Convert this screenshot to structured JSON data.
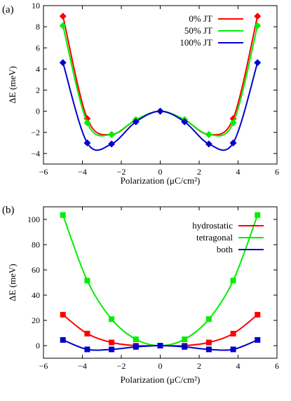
{
  "chart_data": [
    {
      "type": "line",
      "panel_label": "(a)",
      "xlabel": "Polarization (μC/cm²)",
      "ylabel": "ΔE (meV)",
      "xlim": [
        -6,
        6
      ],
      "ylim": [
        -5,
        10
      ],
      "xticks": [
        -6,
        -4,
        -2,
        0,
        2,
        4,
        6
      ],
      "yticks": [
        -4,
        -2,
        0,
        2,
        4,
        6,
        8,
        10
      ],
      "xtick_labels": [
        "−6",
        "−4",
        "−2",
        "0",
        "2",
        "4",
        "6"
      ],
      "ytick_labels": [
        "−4",
        "−2",
        "0",
        "2",
        "4",
        "6",
        "8",
        "10"
      ],
      "grid": false,
      "legend_position": "top-right",
      "marker": "diamond",
      "x": [
        -5.0,
        -3.75,
        -2.5,
        -1.25,
        0,
        1.25,
        2.5,
        3.75,
        5.0
      ],
      "series": [
        {
          "name": "0% JT",
          "color": "#ff0000",
          "values": [
            9.0,
            -0.7,
            -2.2,
            -0.8,
            0.0,
            -0.8,
            -2.2,
            -0.7,
            9.0
          ]
        },
        {
          "name": "50% JT",
          "color": "#00ee00",
          "values": [
            8.1,
            -1.1,
            -2.2,
            -0.8,
            0.0,
            -0.8,
            -2.2,
            -1.1,
            8.1
          ]
        },
        {
          "name": "100% JT",
          "color": "#0000cc",
          "values": [
            4.6,
            -3.0,
            -3.1,
            -1.0,
            0.0,
            -1.0,
            -3.1,
            -3.0,
            4.6
          ]
        }
      ]
    },
    {
      "type": "line",
      "panel_label": "(b)",
      "xlabel": "Polarization (μC/cm²)",
      "ylabel": "ΔE (meV)",
      "xlim": [
        -6,
        6
      ],
      "ylim": [
        -10,
        110
      ],
      "xticks": [
        -6,
        -4,
        -2,
        0,
        2,
        4,
        6
      ],
      "yticks": [
        0,
        20,
        40,
        60,
        80,
        100
      ],
      "xtick_labels": [
        "−6",
        "−4",
        "−2",
        "0",
        "2",
        "4",
        "6"
      ],
      "ytick_labels": [
        "0",
        "20",
        "40",
        "60",
        "80",
        "100"
      ],
      "grid": false,
      "legend_position": "top-right",
      "marker": "square",
      "x": [
        -5.0,
        -3.75,
        -2.5,
        -1.25,
        0,
        1.25,
        2.5,
        3.75,
        5.0
      ],
      "series": [
        {
          "name": "hydrostatic",
          "color": "#ff0000",
          "values": [
            24.5,
            9.5,
            2.5,
            0.0,
            0.0,
            0.0,
            2.5,
            9.5,
            24.5
          ]
        },
        {
          "name": "tetragonal",
          "color": "#00ee00",
          "values": [
            103.5,
            51.5,
            21.0,
            5.0,
            0.0,
            5.0,
            21.0,
            51.5,
            103.5
          ]
        },
        {
          "name": "both",
          "color": "#0000cc",
          "values": [
            4.5,
            -3.0,
            -3.0,
            -1.0,
            0.0,
            -1.0,
            -3.0,
            -3.0,
            4.5
          ]
        }
      ]
    }
  ]
}
